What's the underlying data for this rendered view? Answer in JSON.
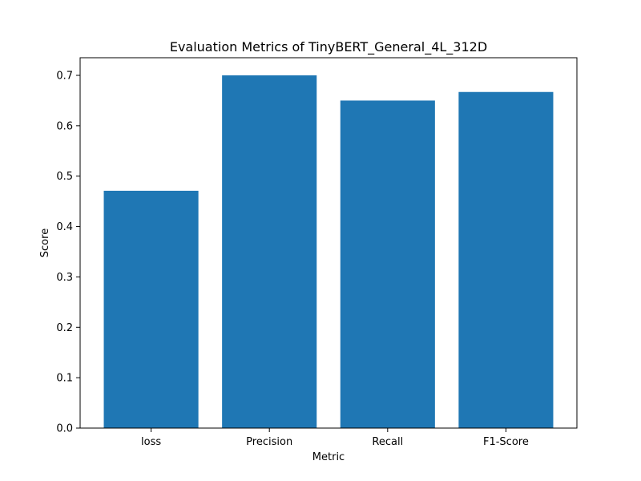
{
  "chart_data": {
    "type": "bar",
    "title": "Evaluation Metrics of TinyBERT_General_4L_312D",
    "xlabel": "Metric",
    "ylabel": "Score",
    "categories": [
      "loss",
      "Precision",
      "Recall",
      "F1-Score"
    ],
    "values": [
      0.471,
      0.7,
      0.65,
      0.667
    ],
    "ylim": [
      0,
      0.735
    ],
    "yticks": [
      0.0,
      0.1,
      0.2,
      0.3,
      0.4,
      0.5,
      0.6,
      0.7
    ],
    "ytick_labels": [
      "0.0",
      "0.1",
      "0.2",
      "0.3",
      "0.4",
      "0.5",
      "0.6",
      "0.7"
    ],
    "bar_color": "#1f77b4",
    "grid": false,
    "legend": "none"
  }
}
